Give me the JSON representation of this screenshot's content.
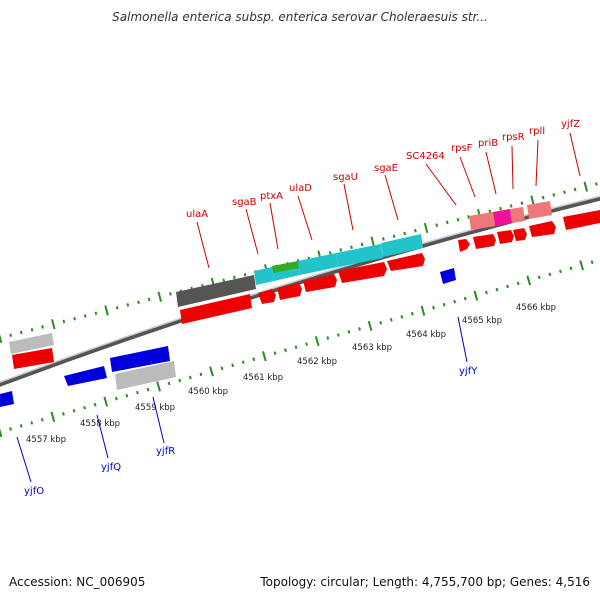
{
  "title": "Salmonella enterica subsp. enterica serovar Choleraesuis str...",
  "accession": "Accession: NC_006905",
  "summary": "Topology: circular; Length: 4,755,700 bp; Genes: 4,516",
  "colors": {
    "forward_label": "#cc0000",
    "reverse_label": "#0000cc",
    "tick": "#2e8b22",
    "backbone": "#555555",
    "feature_dark": "#555555",
    "feature_cyan": "#22c4cc",
    "feature_green": "#33aa22",
    "feature_red": "#ee0000",
    "feature_pink": "#ee7777",
    "feature_magenta": "#ee1199",
    "feature_blue": "#0000dd",
    "feature_grey": "#bbbbbb"
  },
  "ruler_labels": [
    "4557 kbp",
    "4558 kbp",
    "4559 kbp",
    "4560 kbp",
    "4561 kbp",
    "4562 kbp",
    "4563 kbp",
    "4564 kbp",
    "4565 kbp",
    "4566 kbp"
  ],
  "forward_genes": [
    "ulaA",
    "sgaB",
    "ptxA",
    "ulaD",
    "sgaU",
    "sgaE",
    "SC4264",
    "rpsF",
    "priB",
    "rpsR",
    "rplI",
    "yjfZ"
  ],
  "reverse_genes": [
    "yjfO",
    "yjfQ",
    "yjfR",
    "yjfY"
  ]
}
